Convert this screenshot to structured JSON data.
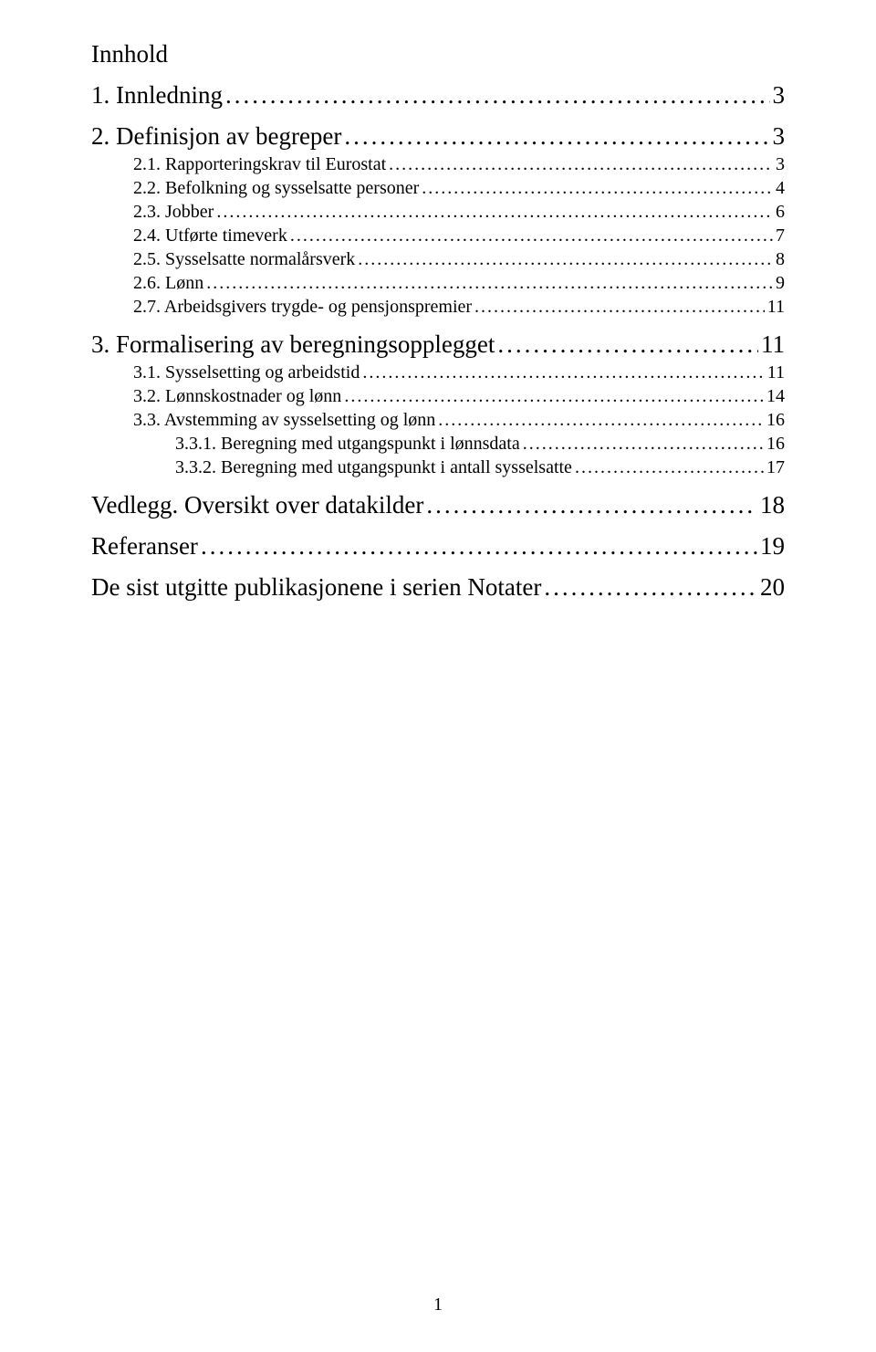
{
  "title": "Innhold",
  "page_number": "1",
  "colors": {
    "background": "#ffffff",
    "text": "#000000"
  },
  "typography": {
    "font_family": "Times New Roman",
    "level1_fontsize": 27,
    "level2_fontsize": 20,
    "level3_fontsize": 20
  },
  "entries": [
    {
      "level": 1,
      "label": "1. Innledning",
      "page": "3"
    },
    {
      "level": 1,
      "label": "2. Definisjon av begreper",
      "page": "3"
    },
    {
      "level": 2,
      "label": "2.1. Rapporteringskrav til Eurostat",
      "page": "3"
    },
    {
      "level": 2,
      "label": "2.2. Befolkning og sysselsatte personer",
      "page": "4"
    },
    {
      "level": 2,
      "label": "2.3. Jobber",
      "page": "6"
    },
    {
      "level": 2,
      "label": "2.4. Utførte timeverk",
      "page": "7"
    },
    {
      "level": 2,
      "label": "2.5. Sysselsatte normalårsverk",
      "page": "8"
    },
    {
      "level": 2,
      "label": "2.6. Lønn",
      "page": "9"
    },
    {
      "level": 2,
      "label": "2.7. Arbeidsgivers trygde- og pensjonspremier",
      "page": "11"
    },
    {
      "level": 1,
      "label": "3. Formalisering av beregningsopplegget",
      "page": "11"
    },
    {
      "level": 2,
      "label": "3.1. Sysselsetting og arbeidstid",
      "page": "11"
    },
    {
      "level": 2,
      "label": "3.2. Lønnskostnader og lønn",
      "page": "14"
    },
    {
      "level": 2,
      "label": "3.3. Avstemming av sysselsetting og lønn",
      "page": "16"
    },
    {
      "level": 3,
      "label": "3.3.1. Beregning med utgangspunkt i lønnsdata",
      "page": "16"
    },
    {
      "level": 3,
      "label": "3.3.2. Beregning med utgangspunkt i antall sysselsatte",
      "page": "17"
    },
    {
      "level": 1,
      "label": "Vedlegg. Oversikt over datakilder",
      "page": "18"
    },
    {
      "level": 1,
      "label": "Referanser",
      "page": "19"
    },
    {
      "level": 1,
      "label": "De sist utgitte publikasjonene i serien Notater",
      "page": "20"
    }
  ],
  "leader_char": "."
}
